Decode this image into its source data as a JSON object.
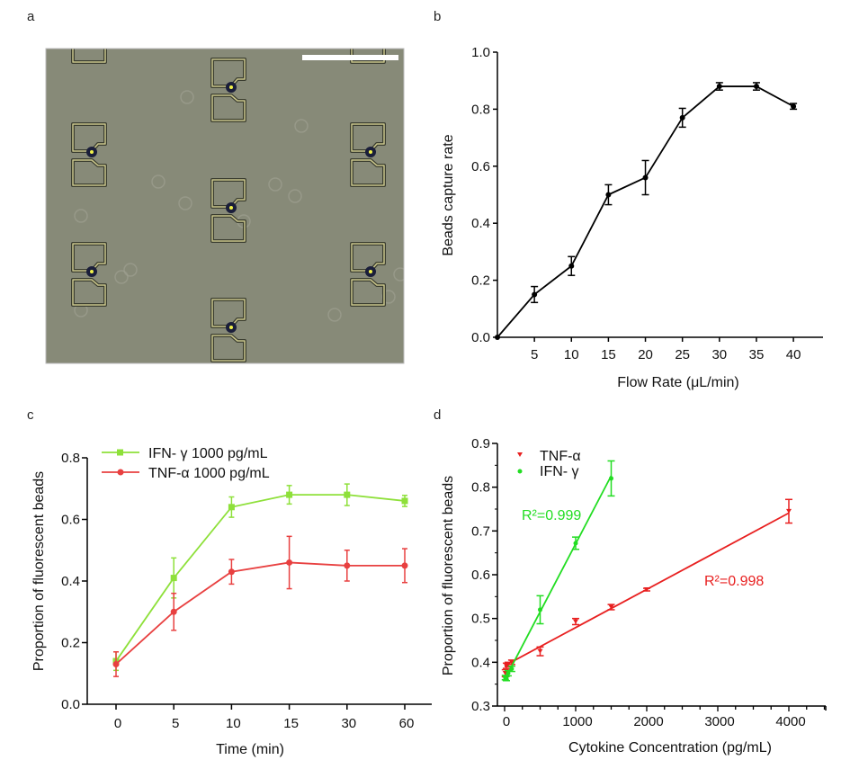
{
  "panel_labels": [
    "a",
    "b",
    "c",
    "d"
  ],
  "micrograph": {
    "description": "Bright-field micrograph of bead-trapping microstructure array with captured beads",
    "background_color": "#878a78",
    "trap_color": "#c8c48a",
    "bead_color": "#1a1e3a",
    "bead_core_color": "#f2f24a",
    "scale_bar_color": "#ffffff"
  },
  "chart_data": [
    {
      "panel": "b",
      "type": "line",
      "title": "",
      "xlabel": "Flow Rate (μL/min)",
      "ylabel": "Beads capture rate",
      "x": [
        0,
        5,
        10,
        15,
        20,
        25,
        30,
        35,
        40
      ],
      "xticks": [
        5,
        10,
        15,
        20,
        25,
        30,
        35,
        40
      ],
      "yticks": [
        "0.0",
        "0.2",
        "0.4",
        "0.6",
        "0.8",
        "1.0"
      ],
      "xlim": [
        0,
        44
      ],
      "ylim": [
        0,
        1.0
      ],
      "series": [
        {
          "name": "capture rate",
          "color": "#000000",
          "marker": "circle",
          "values": [
            0,
            0.15,
            0.25,
            0.5,
            0.56,
            0.77,
            0.88,
            0.88,
            0.81
          ],
          "errors": [
            0,
            0.028,
            0.033,
            0.035,
            0.06,
            0.033,
            0.013,
            0.013,
            0.01
          ]
        }
      ]
    },
    {
      "panel": "c",
      "type": "line",
      "title": "",
      "xlabel": "Time (min)",
      "ylabel": "Proportion of fluorescent beads",
      "categories": [
        "0",
        "5",
        "10",
        "15",
        "30",
        "60"
      ],
      "yticks": [
        "0.0",
        "0.2",
        "0.4",
        "0.6",
        "0.8"
      ],
      "ylim": [
        0,
        0.8
      ],
      "legend_position": "top-left",
      "series": [
        {
          "name": "IFN- γ  1000 pg/mL",
          "color": "#8ee03a",
          "marker": "square",
          "values": [
            0.14,
            0.41,
            0.64,
            0.68,
            0.68,
            0.66
          ],
          "errors": [
            0.03,
            0.065,
            0.033,
            0.03,
            0.035,
            0.018
          ]
        },
        {
          "name": "TNF-α  1000 pg/mL",
          "color": "#e84040",
          "marker": "circle",
          "values": [
            0.13,
            0.3,
            0.43,
            0.46,
            0.45,
            0.45
          ],
          "errors": [
            0.04,
            0.06,
            0.04,
            0.085,
            0.05,
            0.055
          ]
        }
      ]
    },
    {
      "panel": "d",
      "type": "scatter",
      "title": "",
      "xlabel": "Cytokine Concentration (pg/mL)",
      "ylabel": "Proportion of fluorescent beads",
      "xticks": [
        0,
        1000,
        2000,
        3000,
        4000
      ],
      "yticks": [
        "0.3",
        "0.4",
        "0.5",
        "0.6",
        "0.7",
        "0.8",
        "0.9"
      ],
      "xlim": [
        -100,
        4500
      ],
      "ylim": [
        0.3,
        0.9
      ],
      "legend_position": "top-left",
      "series": [
        {
          "name": "TNF-α",
          "color": "#e82020",
          "marker": "triangle-down",
          "x": [
            10,
            25,
            50,
            100,
            500,
            1000,
            1500,
            2000,
            4000
          ],
          "values": [
            0.375,
            0.392,
            0.395,
            0.4,
            0.425,
            0.493,
            0.526,
            0.566,
            0.745
          ],
          "errors": [
            0.008,
            0.006,
            0.005,
            0.005,
            0.01,
            0.007,
            0.006,
            0.003,
            0.027
          ],
          "fit": {
            "x": [
              0,
              4000
            ],
            "y": [
              0.392,
              0.741
            ]
          },
          "annotation": "R²=0.998"
        },
        {
          "name": "IFN- γ",
          "color": "#22dd22",
          "marker": "circle",
          "x": [
            10,
            25,
            50,
            100,
            500,
            1000,
            1500
          ],
          "values": [
            0.365,
            0.363,
            0.375,
            0.385,
            0.52,
            0.672,
            0.82
          ],
          "errors": [
            0.005,
            0.005,
            0.006,
            0.006,
            0.032,
            0.014,
            0.04
          ],
          "fit": {
            "x": [
              0,
              1500
            ],
            "y": [
              0.36,
              0.826
            ]
          },
          "annotation": "R²=0.999"
        }
      ]
    }
  ]
}
